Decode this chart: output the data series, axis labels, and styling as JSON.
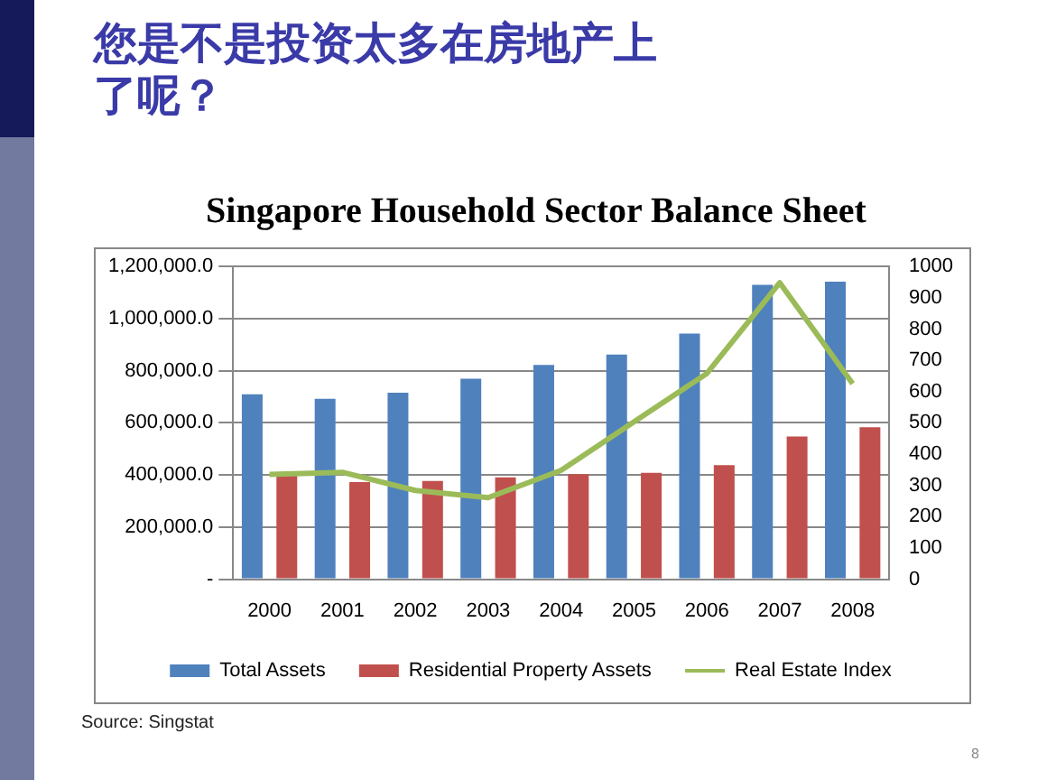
{
  "chart_data": {
    "type": "bar",
    "title": "您是不是投资太多在房地产上了呢？",
    "subtitle": "Singapore Household Sector Balance Sheet",
    "categories": [
      "2000",
      "2001",
      "2002",
      "2003",
      "2004",
      "2005",
      "2006",
      "2007",
      "2008"
    ],
    "series": [
      {
        "name": "Total Assets",
        "color": "#4f81bd",
        "values": [
          710000,
          692000,
          716000,
          769000,
          822000,
          862000,
          943000,
          1130000,
          1142000
        ]
      },
      {
        "name": "Residential Property Assets",
        "color": "#c0504d",
        "values": [
          403000,
          373000,
          377000,
          391000,
          403000,
          408000,
          438000,
          548000,
          583000
        ]
      },
      {
        "name": "Real Estate Index",
        "type": "line",
        "axis": "y2",
        "color": "#9bbb59",
        "values": [
          335,
          342,
          284,
          261,
          348,
          503,
          658,
          948,
          625
        ]
      }
    ],
    "ylim": [
      0,
      1200000
    ],
    "yticks": [
      {
        "value": 0,
        "label": "-"
      },
      {
        "value": 200000,
        "label": "200,000.0"
      },
      {
        "value": 400000,
        "label": "400,000.0"
      },
      {
        "value": 600000,
        "label": "600,000.0"
      },
      {
        "value": 800000,
        "label": "800,000.0"
      },
      {
        "value": 1000000,
        "label": "1,000,000.0"
      },
      {
        "value": 1200000,
        "label": "1,200,000.0"
      }
    ],
    "y2lim": [
      0,
      1000
    ],
    "y2ticks": [
      0,
      100,
      200,
      300,
      400,
      500,
      600,
      700,
      800,
      900,
      1000
    ],
    "grid": "y",
    "legend": "bottom",
    "marker": "none",
    "line_style": "solid",
    "annotations": [
      "Source: Singstat",
      "8"
    ]
  }
}
